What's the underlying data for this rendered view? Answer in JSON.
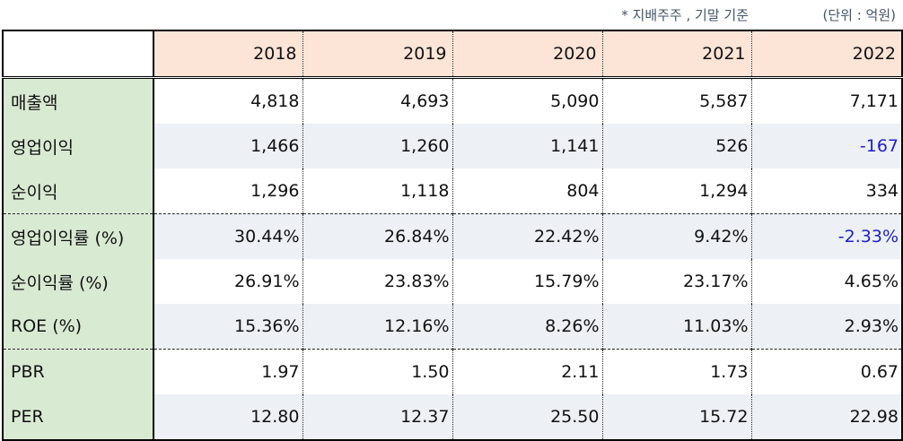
{
  "notes": {
    "basis": "* 지배주주 , 기말 기준",
    "unit": "(단위 : 억원)"
  },
  "colors": {
    "header_bg": "#fce4d6",
    "label_bg": "#d9ead3",
    "alt_row_bg": "#edf0f5",
    "negative": "#1f1fcc"
  },
  "chart_data": {
    "type": "table",
    "columns": [
      "2018",
      "2019",
      "2020",
      "2021",
      "2022"
    ],
    "rows": [
      {
        "label": "매출액",
        "values": [
          "4,818",
          "4,693",
          "5,090",
          "5,587",
          "7,171"
        ]
      },
      {
        "label": "영업이익",
        "values": [
          "1,466",
          "1,260",
          "1,141",
          "526",
          "-167"
        ]
      },
      {
        "label": "순이익",
        "values": [
          "1,296",
          "1,118",
          "804",
          "1,294",
          "334"
        ]
      },
      {
        "label": "영업이익률 (%)",
        "values": [
          "30.44%",
          "26.84%",
          "22.42%",
          "9.42%",
          "-2.33%"
        ]
      },
      {
        "label": "순이익률 (%)",
        "values": [
          "26.91%",
          "23.83%",
          "15.79%",
          "23.17%",
          "4.65%"
        ]
      },
      {
        "label": "ROE (%)",
        "values": [
          "15.36%",
          "12.16%",
          "8.26%",
          "11.03%",
          "2.93%"
        ]
      },
      {
        "label": "PBR",
        "values": [
          "1.97",
          "1.50",
          "2.11",
          "1.73",
          "0.67"
        ]
      },
      {
        "label": "PER",
        "values": [
          "12.80",
          "12.37",
          "25.50",
          "15.72",
          "22.98"
        ]
      }
    ]
  }
}
